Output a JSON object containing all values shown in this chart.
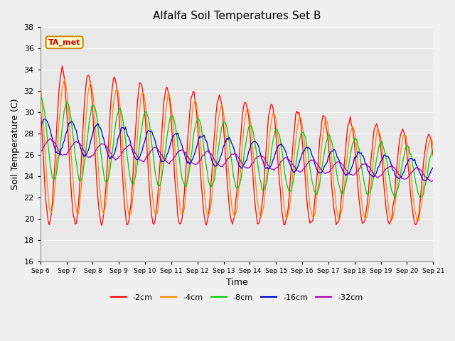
{
  "title": "Alfalfa Soil Temperatures Set B",
  "xlabel": "Time",
  "ylabel": "Soil Temperature (C)",
  "ylim": [
    16,
    38
  ],
  "xlim": [
    0,
    15
  ],
  "xtick_positions": [
    0,
    1,
    2,
    3,
    4,
    5,
    6,
    7,
    8,
    9,
    10,
    11,
    12,
    13,
    14,
    15
  ],
  "xtick_labels": [
    "Sep 6",
    "Sep 7",
    "Sep 8",
    "Sep 9",
    "Sep 10",
    "Sep 11",
    "Sep 12",
    "Sep 13",
    "Sep 14",
    "Sep 15",
    "Sep 16",
    "Sep 17",
    "Sep 18",
    "Sep 19",
    "Sep 20",
    "Sep 21"
  ],
  "annotation_text": "TA_met",
  "annotation_color": "#cc0000",
  "annotation_bg": "#ffffcc",
  "annotation_border": "#cc8800",
  "fig_bg": "#f0f0f0",
  "plot_bg": "#e8e8e8",
  "colors": {
    "-2cm": "#ff0000",
    "-4cm": "#ff8800",
    "-8cm": "#00cc00",
    "-16cm": "#0000cc",
    "-32cm": "#aa00aa"
  },
  "legend_labels": [
    "-2cm",
    "-4cm",
    "-8cm",
    "-16cm",
    "-32cm"
  ],
  "grid_color": "#ffffff",
  "ytick_start": 16,
  "ytick_end": 38,
  "ytick_step": 2
}
